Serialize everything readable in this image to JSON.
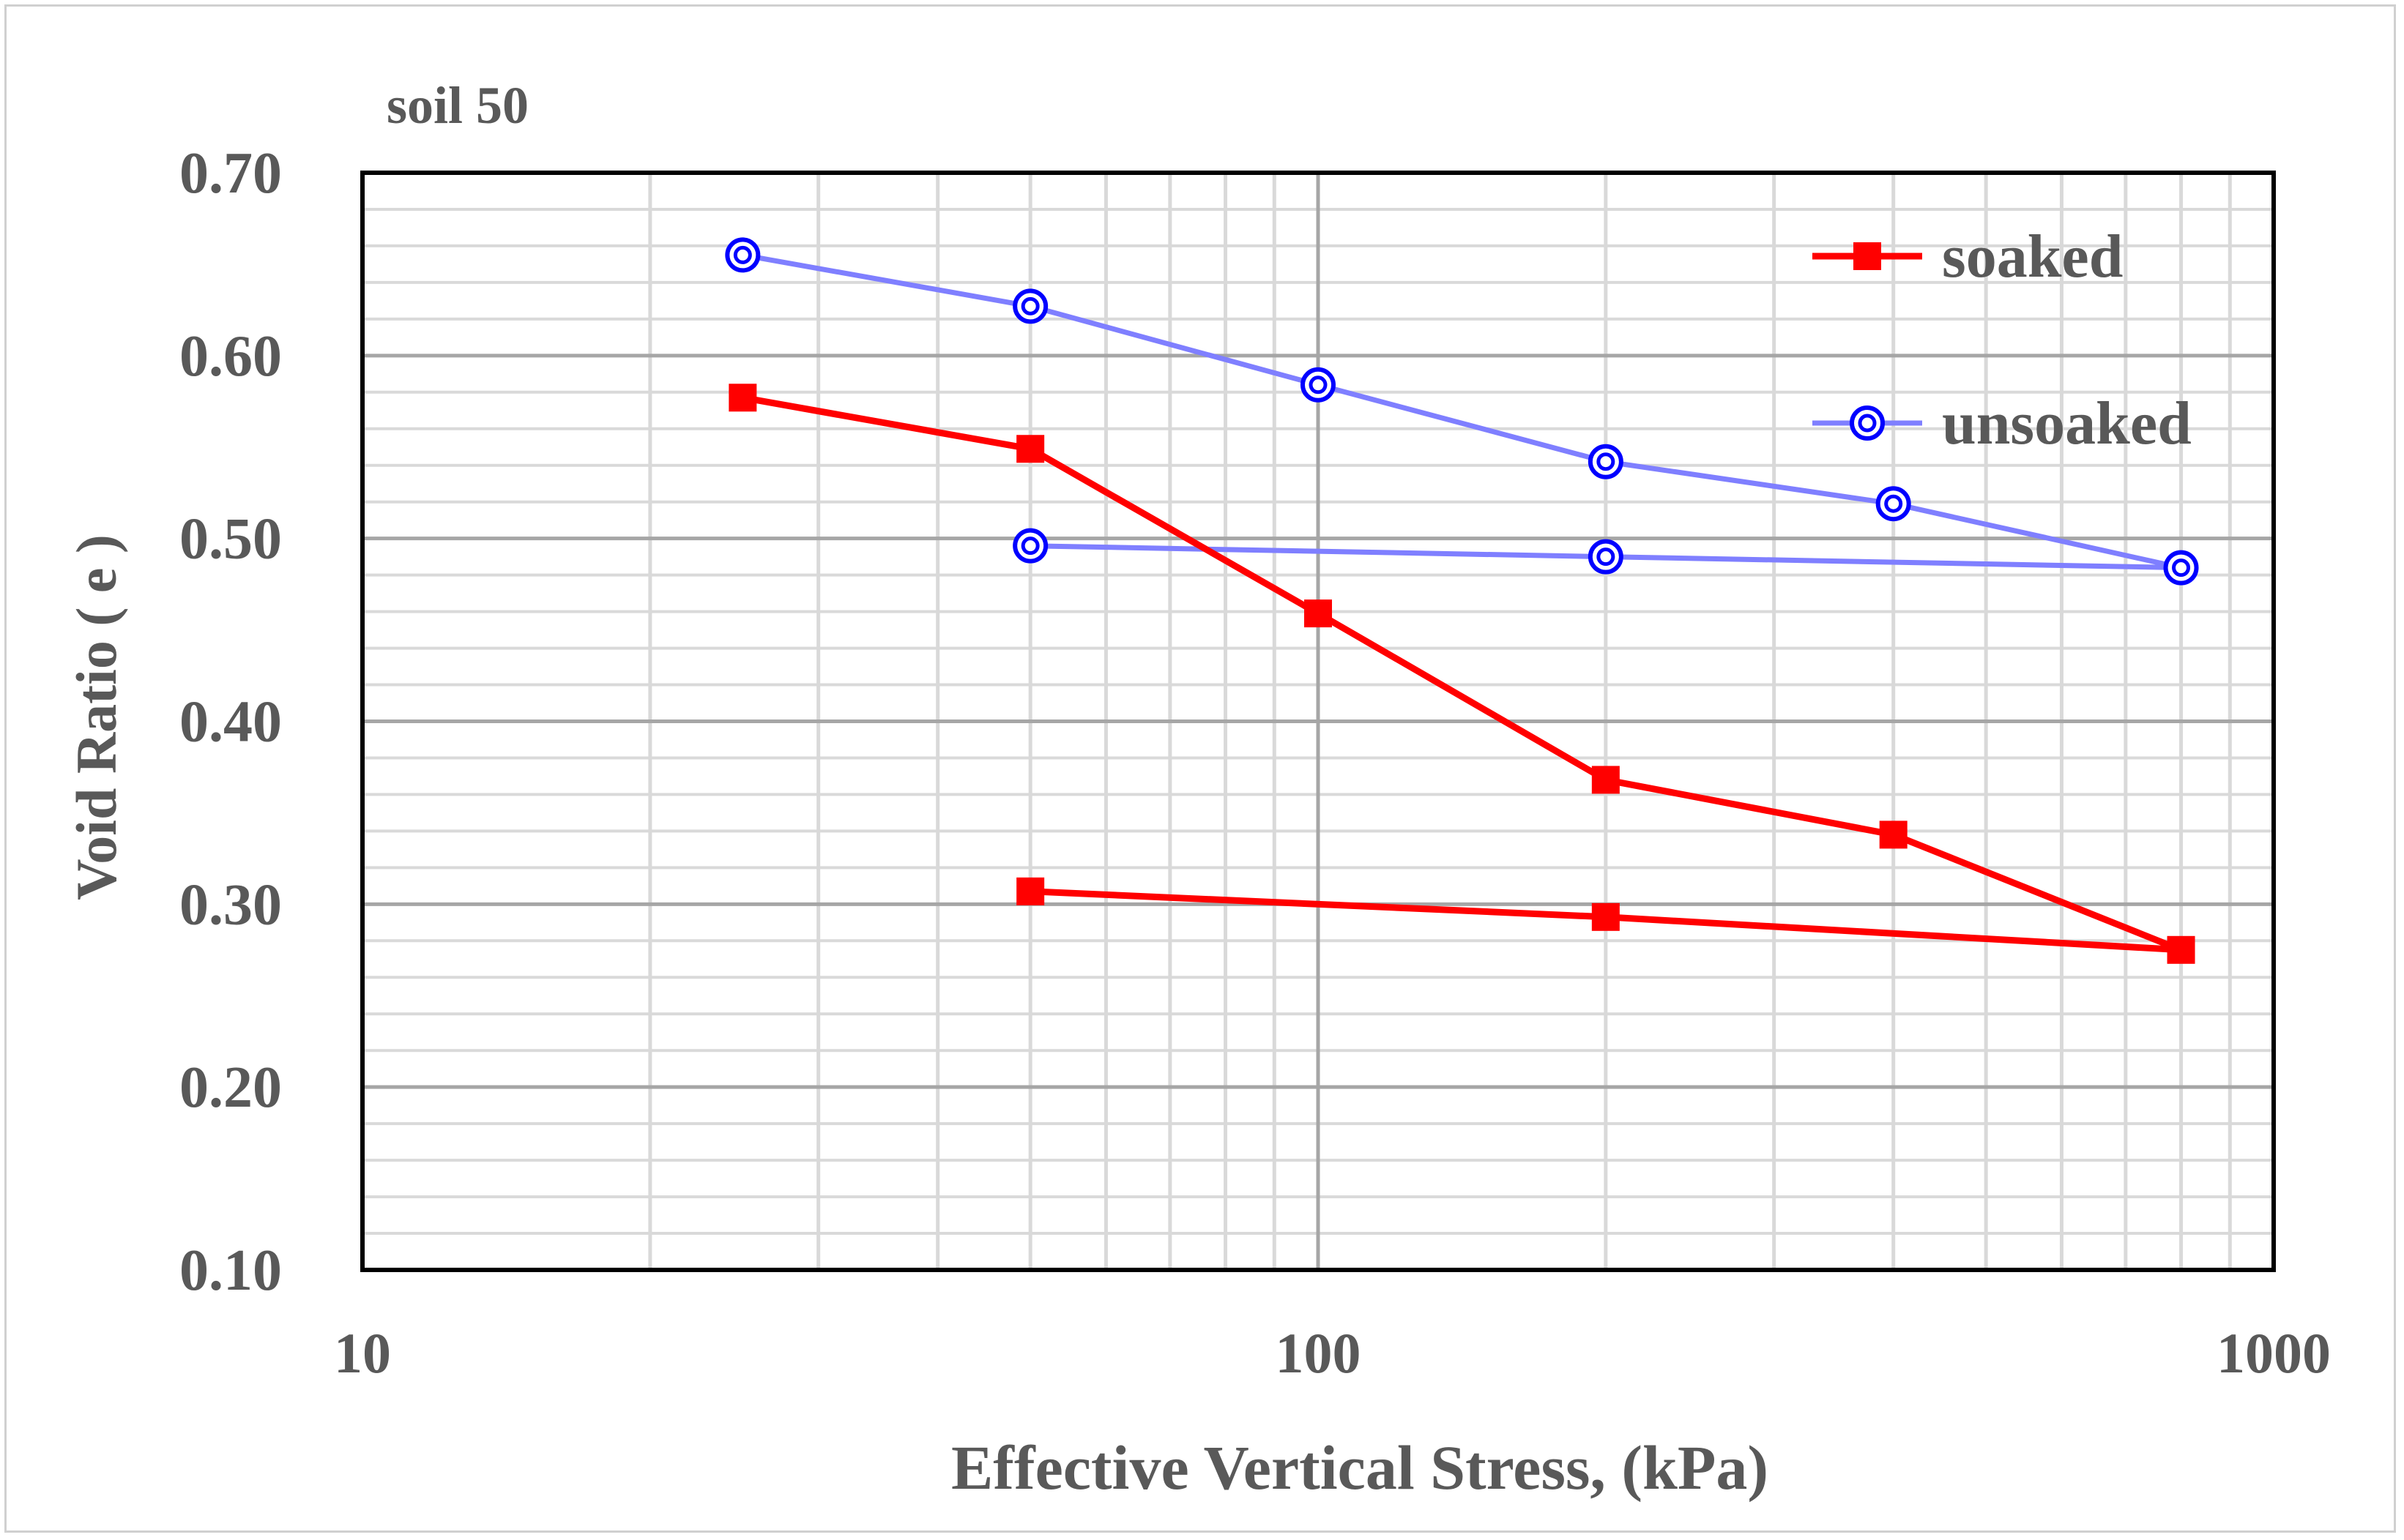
{
  "chart_data": {
    "type": "line",
    "title": "soil 50",
    "xlabel": "Effective Vertical Stress, (kPa)",
    "ylabel": "Void Ratio ( e )",
    "xscale": "log",
    "xlim": [
      10,
      1000
    ],
    "ylim": [
      0.1,
      0.7
    ],
    "xticks": [
      10,
      100,
      1000
    ],
    "xtick_labels": [
      "10",
      "100",
      "1000"
    ],
    "yticks": [
      0.1,
      0.2,
      0.3,
      0.4,
      0.5,
      0.6,
      0.7
    ],
    "ytick_labels": [
      "0.10",
      "0.20",
      "0.30",
      "0.40",
      "0.50",
      "0.60",
      "0.70"
    ],
    "grid": true,
    "legend_position": "top-right",
    "series": [
      {
        "name": "soaked",
        "color": "#ff0000",
        "marker": "square",
        "x": [
          25,
          50,
          100,
          200,
          400,
          800,
          200,
          50
        ],
        "y": [
          0.577,
          0.549,
          0.459,
          0.368,
          0.338,
          0.275,
          0.293,
          0.307
        ]
      },
      {
        "name": "unsoaked",
        "color": "#7f7fff",
        "marker_color": "#0000ff",
        "marker": "double-circle",
        "x": [
          25,
          50,
          100,
          200,
          400,
          800,
          200,
          50
        ],
        "y": [
          0.655,
          0.627,
          0.584,
          0.542,
          0.519,
          0.484,
          0.49,
          0.496
        ]
      }
    ]
  }
}
